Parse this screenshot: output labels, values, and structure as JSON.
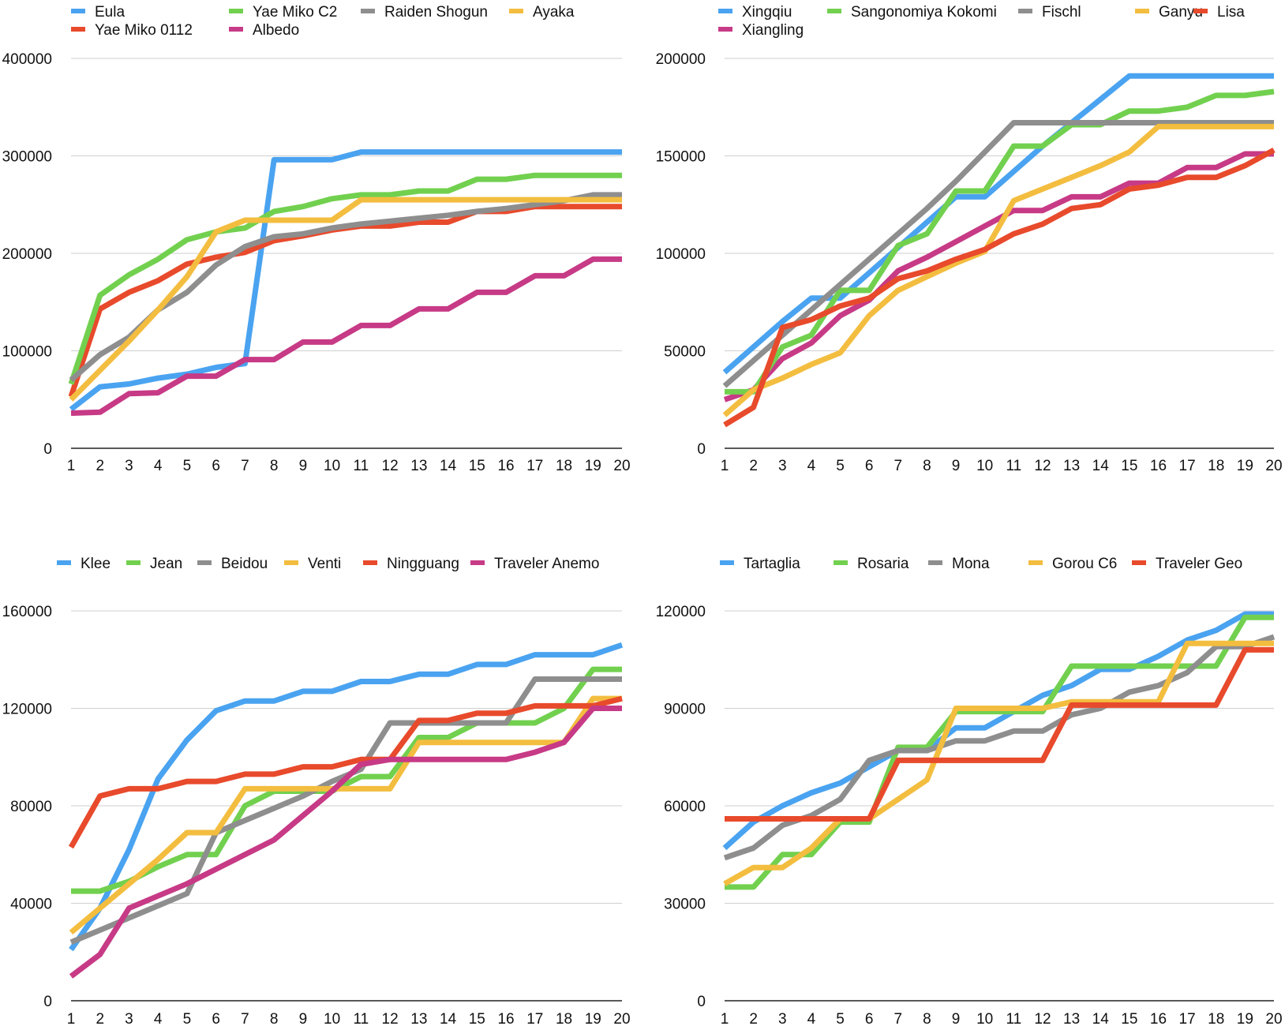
{
  "chart_data": [
    {
      "type": "line",
      "x": [
        1,
        2,
        3,
        4,
        5,
        6,
        7,
        8,
        9,
        10,
        11,
        12,
        13,
        14,
        15,
        16,
        17,
        18,
        19,
        20
      ],
      "ylim": [
        0,
        400000
      ],
      "yticks": [
        0,
        100000,
        200000,
        300000,
        400000
      ],
      "grid": true,
      "legend_position": "top",
      "series": [
        {
          "name": "Eula",
          "color": "#4aa3f0",
          "values": [
            40000,
            63000,
            66000,
            72000,
            76000,
            83000,
            87000,
            296000,
            296000,
            296000,
            304000,
            304000,
            304000,
            304000,
            304000,
            304000,
            304000,
            304000,
            304000,
            304000
          ]
        },
        {
          "name": "Yae Miko 0112",
          "color": "#e84a2c",
          "values": [
            53000,
            143000,
            160000,
            172000,
            189000,
            196000,
            201000,
            213000,
            218000,
            224000,
            228000,
            228000,
            232000,
            232000,
            243000,
            243000,
            248000,
            248000,
            248000,
            248000
          ]
        },
        {
          "name": "Yae Miko C2",
          "color": "#72d04f",
          "values": [
            66000,
            157000,
            178000,
            194000,
            214000,
            222000,
            226000,
            243000,
            248000,
            256000,
            260000,
            260000,
            264000,
            264000,
            276000,
            276000,
            280000,
            280000,
            280000,
            280000
          ]
        },
        {
          "name": "Albedo",
          "color": "#c73a86",
          "values": [
            36000,
            37000,
            56000,
            57000,
            74000,
            74000,
            91000,
            91000,
            109000,
            109000,
            126000,
            126000,
            143000,
            143000,
            160000,
            160000,
            177000,
            177000,
            194000,
            194000
          ]
        },
        {
          "name": "Raiden Shogun",
          "color": "#8e8e8e",
          "values": [
            70000,
            96000,
            114000,
            142000,
            160000,
            188000,
            207000,
            217000,
            220000,
            226000,
            230000,
            233000,
            236000,
            239000,
            243000,
            246000,
            250000,
            254000,
            260000,
            260000
          ]
        },
        {
          "name": "Ayaka",
          "color": "#f3bd3f",
          "values": [
            50000,
            80000,
            110000,
            142000,
            176000,
            222000,
            234000,
            234000,
            234000,
            234000,
            255000,
            255000,
            255000,
            255000,
            255000,
            255000,
            255000,
            255000,
            255000,
            255000
          ]
        }
      ]
    },
    {
      "type": "line",
      "x": [
        1,
        2,
        3,
        4,
        5,
        6,
        7,
        8,
        9,
        10,
        11,
        12,
        13,
        14,
        15,
        16,
        17,
        18,
        19,
        20
      ],
      "ylim": [
        0,
        200000
      ],
      "yticks": [
        0,
        50000,
        100000,
        150000,
        200000
      ],
      "grid": true,
      "legend_position": "top",
      "series": [
        {
          "name": "Xingqiu",
          "color": "#4aa3f0",
          "values": [
            39000,
            52000,
            65000,
            77000,
            77000,
            90000,
            103000,
            116000,
            129000,
            129000,
            142000,
            155000,
            167000,
            179000,
            191000,
            191000,
            191000,
            191000,
            191000,
            191000
          ]
        },
        {
          "name": "Xiangling",
          "color": "#c73a86",
          "values": [
            25000,
            30000,
            46000,
            54000,
            68000,
            76000,
            91000,
            98000,
            106000,
            114000,
            122000,
            122000,
            129000,
            129000,
            136000,
            136000,
            144000,
            144000,
            151000,
            151000
          ]
        },
        {
          "name": "Sangonomiya Kokomi",
          "color": "#72d04f",
          "values": [
            29000,
            29000,
            52000,
            58000,
            81000,
            81000,
            104000,
            110000,
            132000,
            132000,
            155000,
            155000,
            166000,
            166000,
            173000,
            173000,
            175000,
            181000,
            181000,
            183000
          ]
        },
        {
          "name": "Fischl",
          "color": "#8e8e8e",
          "values": [
            32000,
            45000,
            58000,
            71000,
            84000,
            97000,
            110000,
            123000,
            137000,
            152000,
            167000,
            167000,
            167000,
            167000,
            167000,
            167000,
            167000,
            167000,
            167000,
            167000
          ]
        },
        {
          "name": "Ganyu",
          "color": "#f3bd3f",
          "values": [
            17000,
            30000,
            36000,
            43000,
            49000,
            68000,
            81000,
            88000,
            95000,
            101000,
            127000,
            133000,
            139000,
            145000,
            152000,
            165000,
            165000,
            165000,
            165000,
            165000
          ]
        },
        {
          "name": "Lisa",
          "color": "#e84a2c",
          "values": [
            12000,
            21000,
            62000,
            66000,
            73000,
            77000,
            87000,
            91000,
            97000,
            102000,
            110000,
            115000,
            123000,
            125000,
            133000,
            135000,
            139000,
            139000,
            145000,
            153000
          ]
        }
      ]
    },
    {
      "type": "line",
      "x": [
        1,
        2,
        3,
        4,
        5,
        6,
        7,
        8,
        9,
        10,
        11,
        12,
        13,
        14,
        15,
        16,
        17,
        18,
        19,
        20
      ],
      "ylim": [
        0,
        160000
      ],
      "yticks": [
        0,
        40000,
        80000,
        120000,
        160000
      ],
      "grid": true,
      "legend_position": "top",
      "series": [
        {
          "name": "Klee",
          "color": "#4aa3f0",
          "values": [
            21000,
            38000,
            62000,
            91000,
            107000,
            119000,
            123000,
            123000,
            127000,
            127000,
            131000,
            131000,
            134000,
            134000,
            138000,
            138000,
            142000,
            142000,
            142000,
            146000
          ]
        },
        {
          "name": "Jean",
          "color": "#72d04f",
          "values": [
            45000,
            45000,
            49000,
            55000,
            60000,
            60000,
            80000,
            86000,
            86000,
            86000,
            92000,
            92000,
            108000,
            108000,
            114000,
            114000,
            114000,
            120000,
            136000,
            136000
          ]
        },
        {
          "name": "Beidou",
          "color": "#8e8e8e",
          "values": [
            24000,
            29000,
            34000,
            39000,
            44000,
            69000,
            74000,
            79000,
            84000,
            90000,
            95000,
            114000,
            114000,
            114000,
            114000,
            114000,
            132000,
            132000,
            132000,
            132000
          ]
        },
        {
          "name": "Venti",
          "color": "#f3bd3f",
          "values": [
            28000,
            38000,
            48000,
            58000,
            69000,
            69000,
            87000,
            87000,
            87000,
            87000,
            87000,
            87000,
            106000,
            106000,
            106000,
            106000,
            106000,
            106000,
            124000,
            124000
          ]
        },
        {
          "name": "Ningguang",
          "color": "#e84a2c",
          "values": [
            63000,
            84000,
            87000,
            87000,
            90000,
            90000,
            93000,
            93000,
            96000,
            96000,
            99000,
            99000,
            115000,
            115000,
            118000,
            118000,
            121000,
            121000,
            121000,
            124000
          ]
        },
        {
          "name": "Traveler Anemo",
          "color": "#c73a86",
          "values": [
            10000,
            19000,
            38000,
            43000,
            48000,
            54000,
            60000,
            66000,
            76000,
            86000,
            97000,
            99000,
            99000,
            99000,
            99000,
            99000,
            102000,
            106000,
            120000,
            120000
          ]
        }
      ]
    },
    {
      "type": "line",
      "x": [
        1,
        2,
        3,
        4,
        5,
        6,
        7,
        8,
        9,
        10,
        11,
        12,
        13,
        14,
        15,
        16,
        17,
        18,
        19,
        20
      ],
      "ylim": [
        0,
        120000
      ],
      "yticks": [
        0,
        30000,
        60000,
        90000,
        120000
      ],
      "grid": true,
      "legend_position": "top",
      "series": [
        {
          "name": "Tartaglia",
          "color": "#4aa3f0",
          "values": [
            47000,
            55000,
            60000,
            64000,
            67000,
            72000,
            77000,
            77000,
            84000,
            84000,
            89000,
            94000,
            97000,
            102000,
            102000,
            106000,
            111000,
            114000,
            119000,
            119000
          ]
        },
        {
          "name": "Rosaria",
          "color": "#72d04f",
          "values": [
            35000,
            35000,
            45000,
            45000,
            55000,
            55000,
            78000,
            78000,
            89000,
            89000,
            89000,
            89000,
            103000,
            103000,
            103000,
            103000,
            103000,
            103000,
            118000,
            118000
          ]
        },
        {
          "name": "Mona",
          "color": "#8e8e8e",
          "values": [
            44000,
            47000,
            54000,
            57000,
            62000,
            74000,
            77000,
            77000,
            80000,
            80000,
            83000,
            83000,
            88000,
            90000,
            95000,
            97000,
            101000,
            109000,
            109000,
            112000
          ]
        },
        {
          "name": "Gorou C6",
          "color": "#f3bd3f",
          "values": [
            36000,
            41000,
            41000,
            47000,
            56000,
            56000,
            62000,
            68000,
            90000,
            90000,
            90000,
            90000,
            92000,
            92000,
            92000,
            92000,
            110000,
            110000,
            110000,
            110000
          ]
        },
        {
          "name": "Traveler Geo",
          "color": "#e84a2c",
          "values": [
            56000,
            56000,
            56000,
            56000,
            56000,
            56000,
            74000,
            74000,
            74000,
            74000,
            74000,
            74000,
            91000,
            91000,
            91000,
            91000,
            91000,
            91000,
            108000,
            108000
          ]
        }
      ]
    }
  ]
}
